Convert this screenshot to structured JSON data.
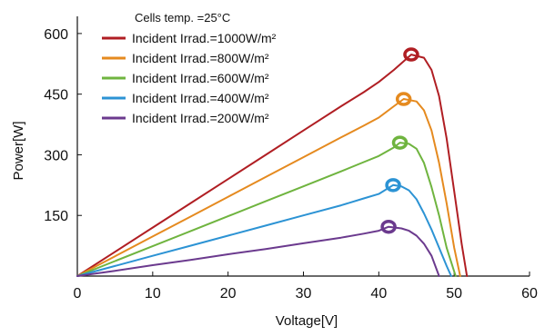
{
  "chart_data": {
    "type": "line",
    "title": "",
    "xlabel": "Voltage[V]",
    "ylabel": "Power[W]",
    "xlim": [
      0,
      60
    ],
    "ylim": [
      0,
      620
    ],
    "xticks": [
      0,
      10,
      20,
      30,
      40,
      50,
      60
    ],
    "yticks": [
      150,
      300,
      450,
      600
    ],
    "grid": false,
    "legend_placement": "top-left",
    "legend_header": "Cells temp. =25°C",
    "series": [
      {
        "name": "Incident Irrad.=1000W/m²",
        "color": "#b01e23",
        "x": [
          0,
          5,
          10,
          15,
          20,
          25,
          30,
          35,
          38,
          40,
          42,
          44.3,
          46,
          47,
          48,
          49,
          50,
          51,
          51.7
        ],
        "y": [
          0,
          60,
          120,
          180,
          240,
          300,
          360,
          420,
          455,
          480,
          510,
          548,
          540,
          510,
          445,
          340,
          210,
          80,
          0
        ],
        "mpp": {
          "x": 44.3,
          "y": 548
        }
      },
      {
        "name": "Incident Irrad.=800W/m²",
        "color": "#e58a1f",
        "x": [
          0,
          5,
          10,
          15,
          20,
          25,
          30,
          35,
          38,
          40,
          42,
          43.3,
          45,
          46,
          47,
          48,
          49,
          50,
          50.8
        ],
        "y": [
          0,
          49,
          98,
          147,
          196,
          245,
          294,
          343,
          372,
          392,
          420,
          438,
          432,
          410,
          360,
          280,
          180,
          70,
          0
        ],
        "mpp": {
          "x": 43.3,
          "y": 438
        }
      },
      {
        "name": "Incident Irrad.=600W/m²",
        "color": "#6fb43f",
        "x": [
          0,
          5,
          10,
          15,
          20,
          25,
          30,
          35,
          38,
          40,
          42,
          42.8,
          44,
          45,
          46,
          47,
          48,
          49,
          50.2
        ],
        "y": [
          0,
          37,
          74,
          111,
          148,
          185,
          222,
          259,
          282,
          297,
          318,
          330,
          327,
          315,
          280,
          220,
          150,
          70,
          0
        ],
        "mpp": {
          "x": 42.8,
          "y": 330
        }
      },
      {
        "name": "Incident Irrad.=400W/m²",
        "color": "#2c93d4",
        "x": [
          0,
          5,
          10,
          15,
          20,
          25,
          30,
          35,
          38,
          40,
          41.9,
          43,
          44,
          45,
          46,
          47,
          48,
          49,
          49.6
        ],
        "y": [
          0,
          25,
          50,
          75,
          100,
          125,
          150,
          175,
          192,
          203,
          225,
          222,
          212,
          190,
          155,
          115,
          70,
          25,
          0
        ],
        "mpp": {
          "x": 41.9,
          "y": 225
        }
      },
      {
        "name": "Incident Irrad.=200W/m²",
        "color": "#6b3a8e",
        "x": [
          0,
          5,
          10,
          15,
          20,
          25,
          30,
          35,
          38,
          40,
          41.3,
          43,
          44,
          45,
          46,
          47,
          48
        ],
        "y": [
          0,
          13,
          27,
          40,
          54,
          67,
          81,
          95,
          105,
          112,
          122,
          118,
          112,
          100,
          80,
          50,
          0
        ],
        "mpp": {
          "x": 41.3,
          "y": 122
        }
      }
    ]
  }
}
